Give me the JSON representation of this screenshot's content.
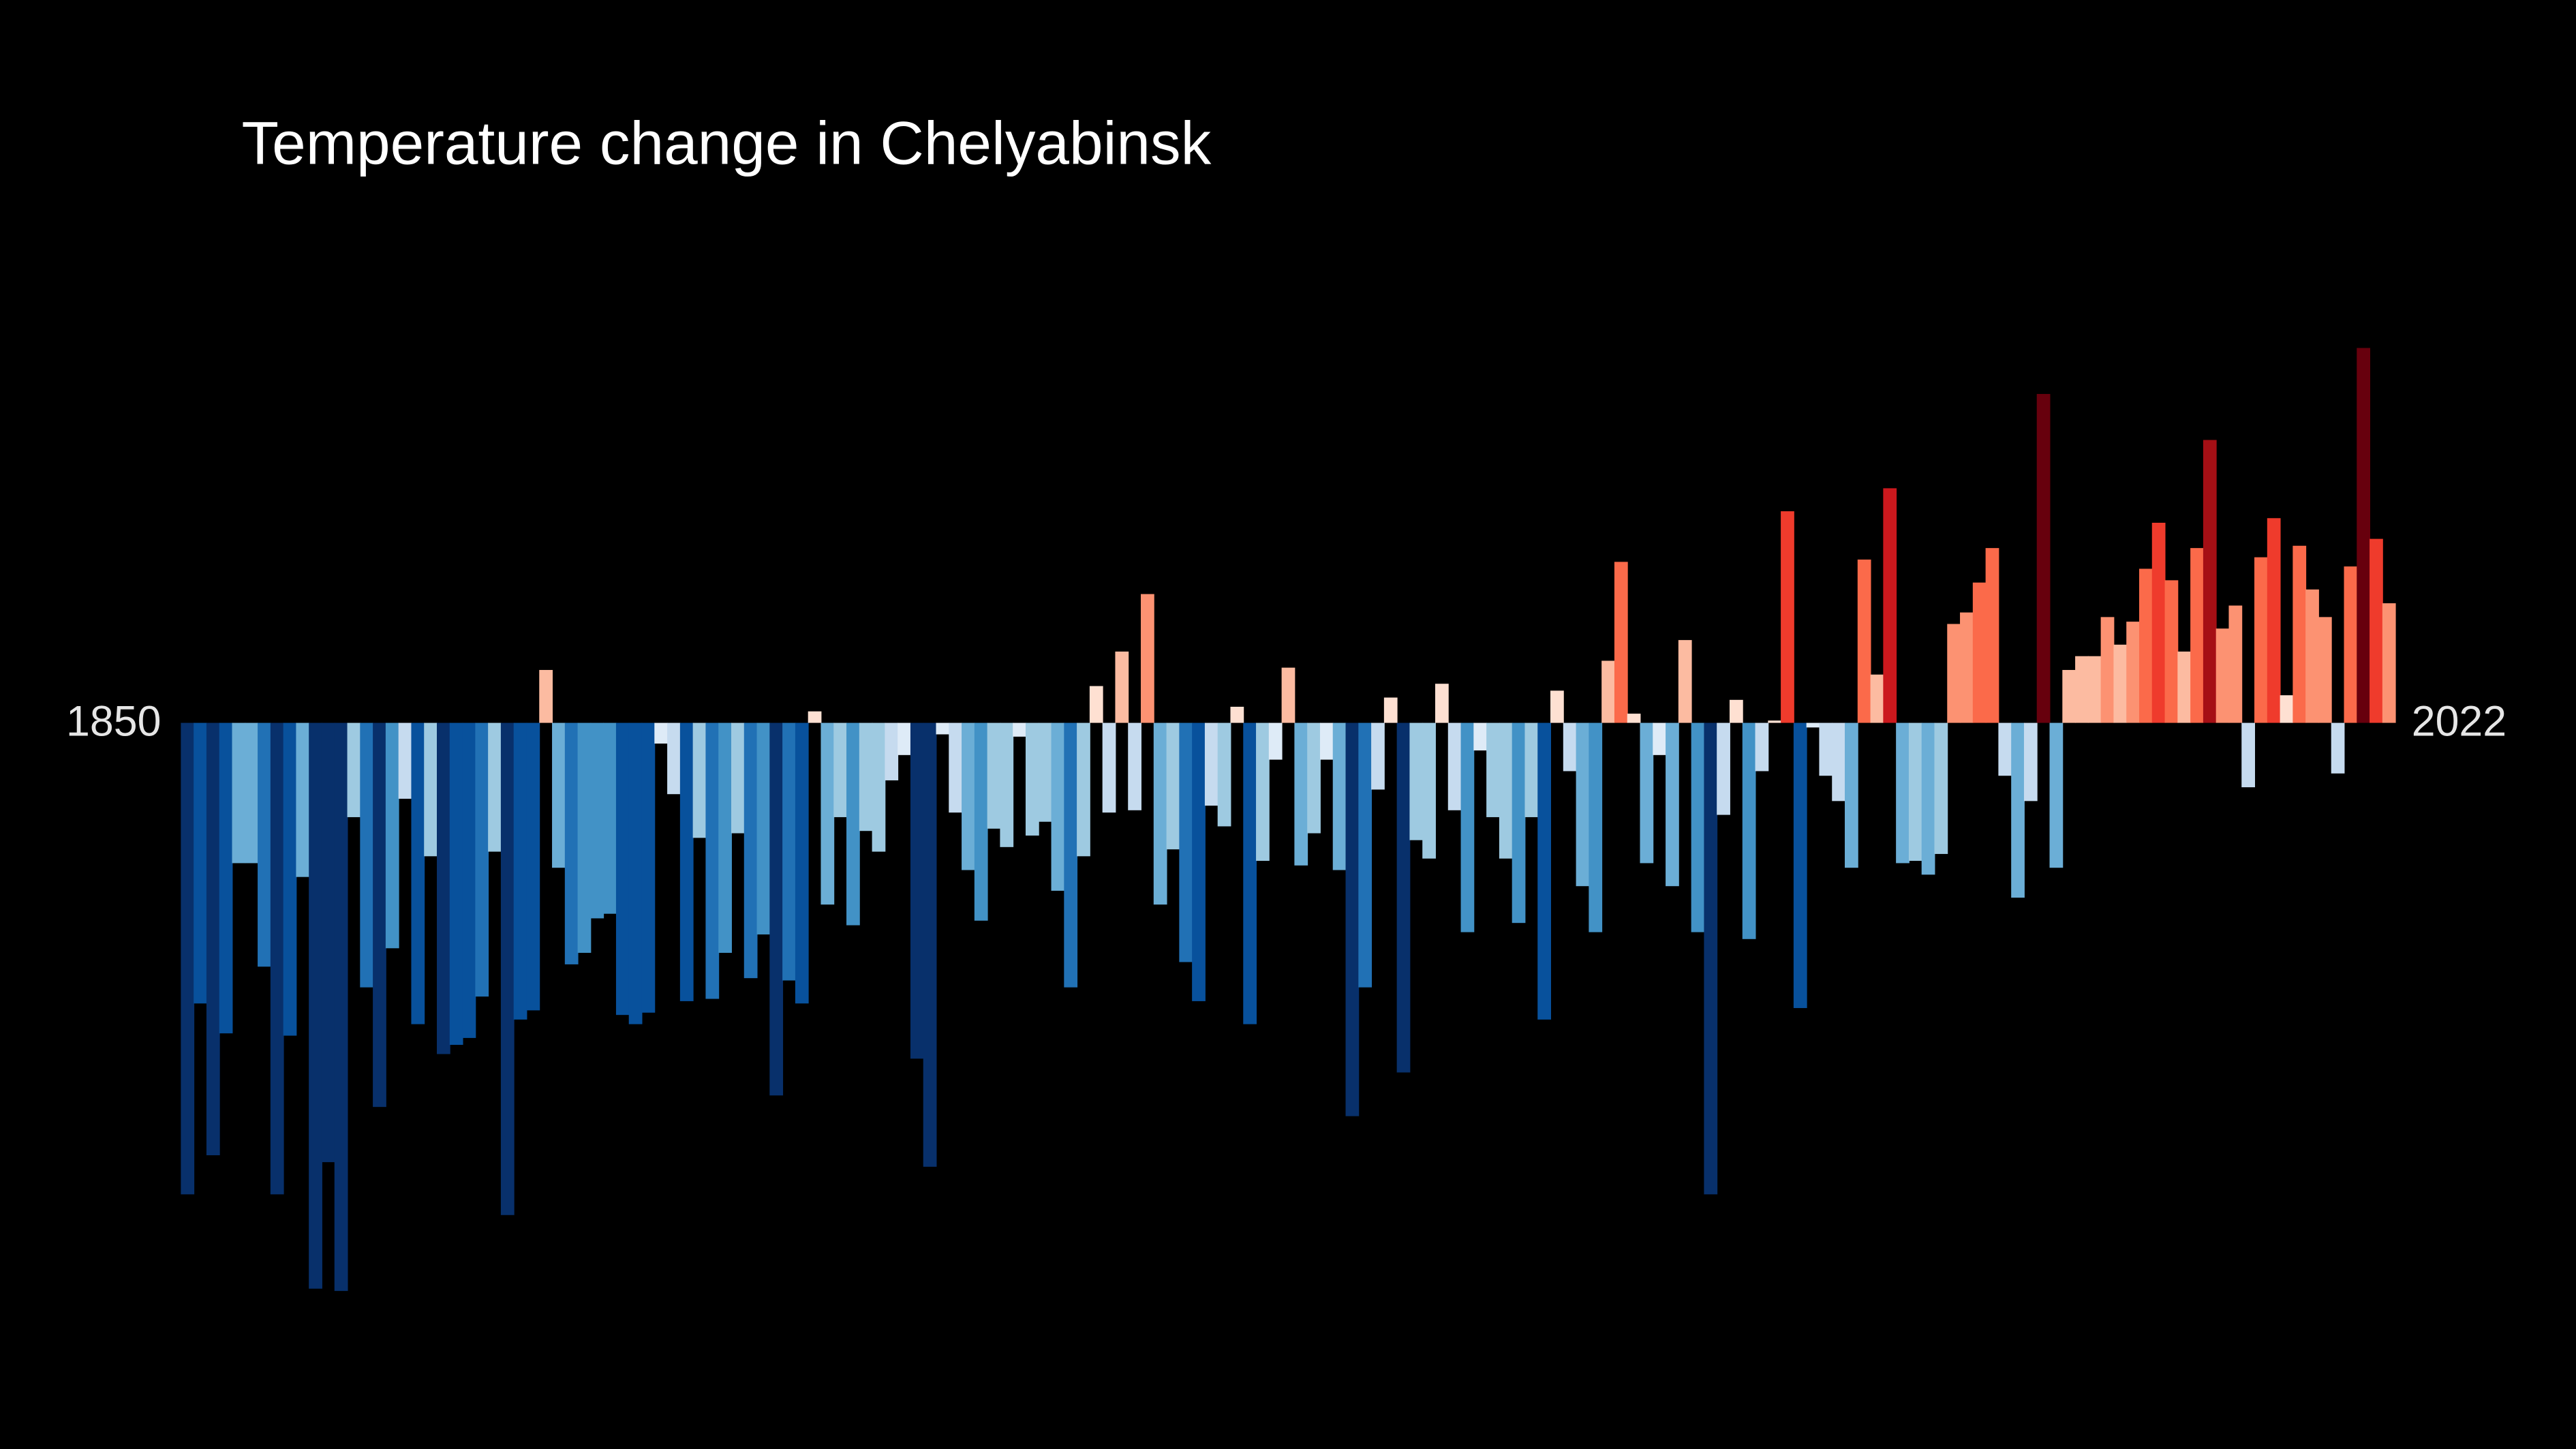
{
  "chart_data": {
    "type": "bar",
    "title": "Temperature change in Chelyabinsk",
    "start_label": "1850",
    "end_label": "2022",
    "values": [
      -2.05,
      -1.22,
      -1.88,
      -1.35,
      -0.61,
      -0.61,
      -1.06,
      -2.05,
      -1.36,
      -0.67,
      -2.46,
      -1.91,
      -2.47,
      -0.41,
      -1.15,
      -1.67,
      -0.98,
      -0.33,
      -1.31,
      -0.58,
      -1.44,
      -1.4,
      -1.37,
      -1.19,
      -0.56,
      -2.14,
      -1.29,
      -1.25,
      0.23,
      -0.63,
      -1.05,
      -1.0,
      -0.85,
      -0.83,
      -1.27,
      -1.31,
      -1.26,
      -0.09,
      -0.31,
      -1.21,
      -0.5,
      -1.2,
      -1.0,
      -0.48,
      -1.11,
      -0.92,
      -1.62,
      -1.12,
      -1.22,
      0.05,
      -0.79,
      -0.41,
      -0.88,
      -0.47,
      -0.56,
      -0.25,
      -0.14,
      -1.46,
      -1.93,
      -0.05,
      -0.39,
      -0.64,
      -0.86,
      -0.46,
      -0.54,
      -0.06,
      -0.49,
      -0.43,
      -0.73,
      -1.15,
      -0.58,
      0.16,
      -0.39,
      0.31,
      -0.38,
      0.56,
      -0.79,
      -0.55,
      -1.04,
      -1.21,
      -0.36,
      -0.45,
      0.07,
      -1.31,
      -0.6,
      -0.16,
      0.24,
      -0.62,
      -0.48,
      -0.16,
      -0.64,
      -1.71,
      -1.15,
      -0.29,
      0.11,
      -1.52,
      -0.51,
      -0.59,
      0.17,
      -0.38,
      -0.91,
      -0.12,
      -0.41,
      -0.59,
      -0.87,
      -0.41,
      -1.29,
      0.14,
      -0.21,
      -0.71,
      -0.91,
      0.27,
      0.7,
      0.04,
      -0.61,
      -0.14,
      -0.71,
      0.36,
      -0.91,
      -2.05,
      -0.4,
      0.1,
      -0.94,
      -0.21,
      0.01,
      0.92,
      -1.24,
      -0.02,
      -0.23,
      -0.34,
      -0.63,
      0.71,
      0.21,
      1.02,
      -0.61,
      -0.6,
      -0.66,
      -0.57,
      0.43,
      0.48,
      0.61,
      0.76,
      -0.23,
      -0.76,
      -0.34,
      1.43,
      -0.63,
      0.23,
      0.29,
      0.29,
      0.46,
      0.34,
      0.44,
      0.67,
      0.87,
      0.62,
      0.31,
      0.76,
      1.23,
      0.41,
      0.51,
      -0.28,
      0.72,
      0.89,
      0.12,
      0.77,
      0.58,
      0.46,
      -0.22,
      0.68,
      1.63,
      0.8,
      0.52
    ],
    "ylim": [
      -2.5,
      1.8
    ],
    "colormap": [
      "#08306b",
      "#08519c",
      "#2171b5",
      "#4292c6",
      "#6baed6",
      "#9ecae1",
      "#c6dbef",
      "#deebf7",
      "#fee0d2",
      "#fcbba1",
      "#fc9272",
      "#fb6a4a",
      "#ef3b2c",
      "#cb181d",
      "#a50f15",
      "#67000d"
    ],
    "clim": [
      -1.6,
      1.6
    ],
    "background": "#000000"
  }
}
